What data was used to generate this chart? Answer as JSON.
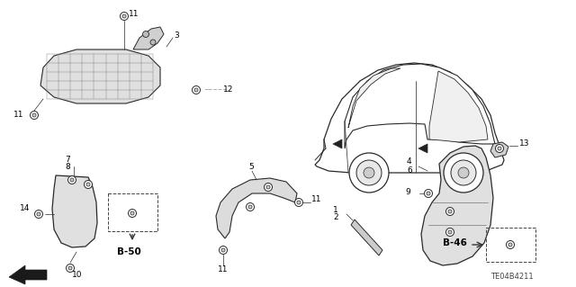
{
  "bg_color": "#ffffff",
  "line_color": "#2a2a2a",
  "text_color": "#000000",
  "diagram_code": "TE04B4211",
  "font_size_label": 6.5,
  "font_size_ref": 7.5,
  "font_size_code": 6,
  "figsize": [
    6.4,
    3.19
  ],
  "dpi": 100,
  "xlim": [
    0,
    640
  ],
  "ylim": [
    0,
    319
  ]
}
